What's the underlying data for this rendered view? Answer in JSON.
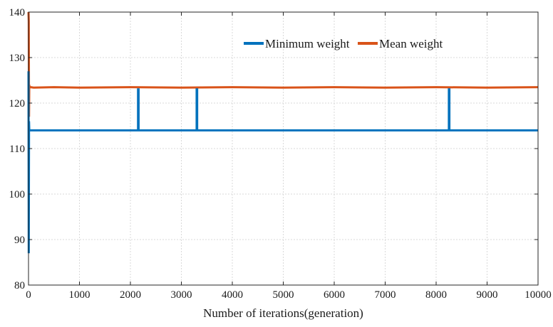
{
  "chart_data": {
    "type": "line",
    "title": "",
    "xlabel": "Number of iterations(generation)",
    "ylabel": "",
    "xlim": [
      0,
      10000
    ],
    "ylim": [
      80,
      140
    ],
    "xticks": [
      0,
      1000,
      2000,
      3000,
      4000,
      5000,
      6000,
      7000,
      8000,
      9000,
      10000
    ],
    "yticks": [
      80,
      90,
      100,
      110,
      120,
      130,
      140
    ],
    "xtick_labels": [
      "0",
      "1000",
      "2000",
      "3000",
      "4000",
      "5000",
      "6000",
      "7000",
      "8000",
      "9000",
      "10000"
    ],
    "ytick_labels": [
      "80",
      "90",
      "100",
      "110",
      "120",
      "130",
      "140"
    ],
    "grid": true,
    "legend_position": "top-right",
    "series": [
      {
        "name": "Minimum weight",
        "color": "#0072BD",
        "x": [
          0,
          5,
          10,
          15,
          20,
          40,
          2150,
          2150,
          2160,
          2160,
          3300,
          3300,
          3310,
          3310,
          8250,
          8250,
          8260,
          8260,
          10000
        ],
        "y": [
          127,
          87,
          116,
          114,
          114,
          114,
          114,
          123,
          123,
          114,
          114,
          123,
          123,
          114,
          114,
          123,
          123,
          114,
          114
        ]
      },
      {
        "name": "Mean weight",
        "color": "#D95319",
        "x": [
          0,
          5,
          10,
          15,
          20,
          40,
          100,
          500,
          1000,
          2000,
          3000,
          4000,
          5000,
          6000,
          7000,
          8000,
          9000,
          10000
        ],
        "y": [
          140,
          138,
          117,
          124,
          123.4,
          123.5,
          123.4,
          123.5,
          123.4,
          123.5,
          123.4,
          123.5,
          123.4,
          123.5,
          123.4,
          123.5,
          123.4,
          123.5
        ]
      }
    ]
  }
}
